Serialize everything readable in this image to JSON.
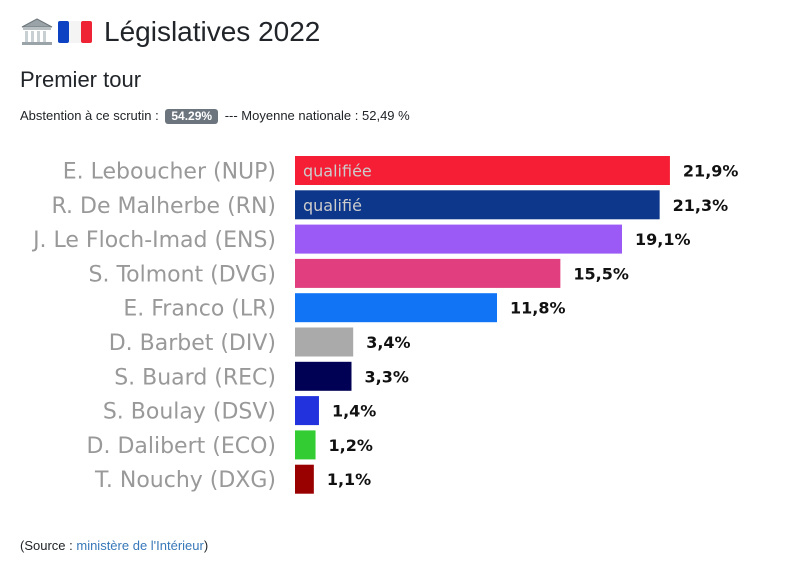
{
  "header": {
    "title": "Législatives 2022",
    "subtitle": "Premier tour",
    "icons": [
      "classical-building-icon",
      "france-flag-icon"
    ]
  },
  "abstention": {
    "label": "Abstention à ce scrutin :",
    "value": "54.29%",
    "national": "--- Moyenne nationale : 52,49 %"
  },
  "chart_data": {
    "type": "bar",
    "orientation": "horizontal",
    "categories": [
      "E. Leboucher (NUP)",
      "R. De Malherbe (RN)",
      "J. Le Floch-Imad (ENS)",
      "S. Tolmont (DVG)",
      "E. Franco (LR)",
      "D. Barbet (DIV)",
      "S. Buard (REC)",
      "S. Boulay (DSV)",
      "D. Dalibert (ECO)",
      "T. Nouchy (DXG)"
    ],
    "values": [
      21.9,
      21.3,
      19.1,
      15.5,
      11.8,
      3.4,
      3.3,
      1.4,
      1.2,
      1.1
    ],
    "value_labels": [
      "21,9%",
      "21,3%",
      "19,1%",
      "15,5%",
      "11,8%",
      "3,4%",
      "3,3%",
      "1,4%",
      "1,2%",
      "1,1%"
    ],
    "bar_annotations": [
      "qualifiée",
      "qualifié",
      "",
      "",
      "",
      "",
      "",
      "",
      "",
      ""
    ],
    "colors": [
      "#f61e34",
      "#0d378a",
      "#9b59f5",
      "#e03e7e",
      "#1074f5",
      "#aaaaaa",
      "#000055",
      "#2233dd",
      "#33cc33",
      "#990000"
    ],
    "annotation_color": "#cccccc",
    "label_color": "#999999",
    "title": "",
    "xlabel": "",
    "ylabel": ""
  },
  "source": {
    "prefix": "(Source : ",
    "link": "ministère de l'Intérieur",
    "suffix": ")"
  }
}
